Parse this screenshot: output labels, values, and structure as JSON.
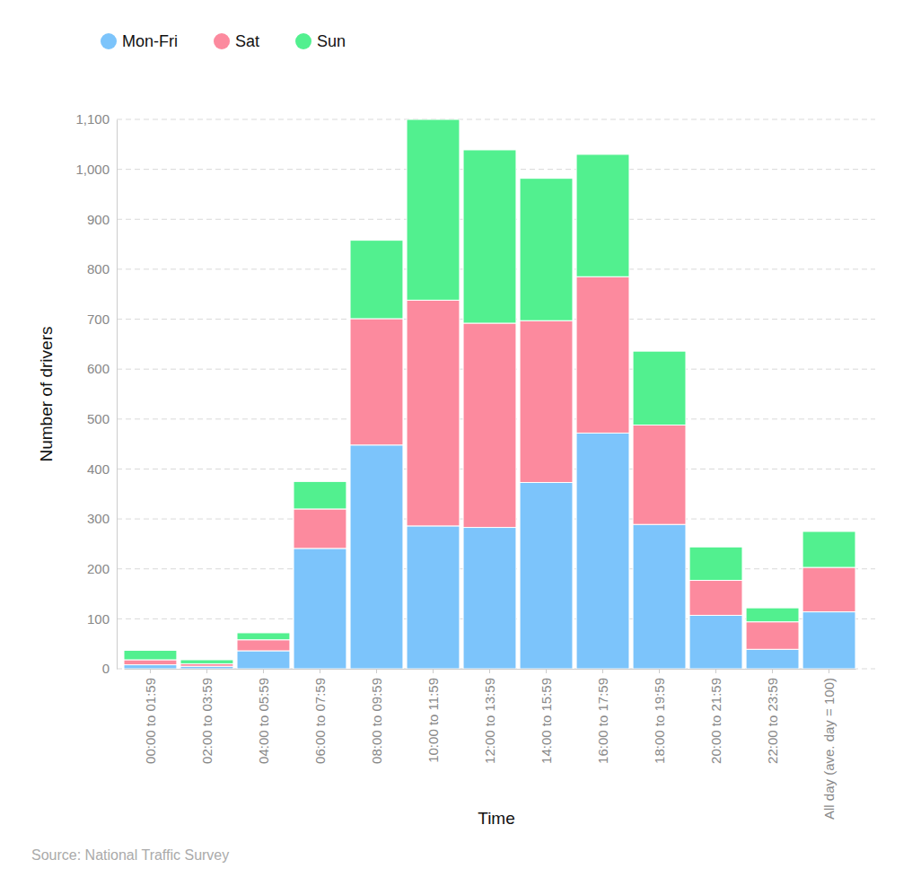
{
  "chart_data": {
    "type": "bar",
    "stacked": true,
    "x_label": "Time",
    "y_label": "Number of drivers",
    "annotations": [
      "Source: National Traffic Survey"
    ],
    "categories": [
      "00:00 to 01:59",
      "02:00 to 03:59",
      "04:00 to 05:59",
      "06:00 to 07:59",
      "08:00 to 09:59",
      "10:00 to 11:59",
      "12:00 to 13:59",
      "14:00 to 15:59",
      "16:00 to 17:59",
      "18:00 to 19:59",
      "20:00 to 21:59",
      "22:00 to 23:59",
      "All day (ave. day = 100)"
    ],
    "series": [
      {
        "name": "Mon-Fri",
        "color": "#7cc4fb",
        "values": [
          8,
          5,
          36,
          241,
          448,
          286,
          283,
          373,
          472,
          289,
          107,
          39,
          114
        ]
      },
      {
        "name": "Sat",
        "color": "#fc8a9e",
        "values": [
          10,
          5,
          22,
          79,
          253,
          452,
          409,
          324,
          313,
          199,
          70,
          55,
          89
        ]
      },
      {
        "name": "Sun",
        "color": "#52f08f",
        "values": [
          19,
          8,
          14,
          55,
          157,
          362,
          347,
          285,
          245,
          148,
          67,
          28,
          72
        ]
      }
    ],
    "ylim": [
      0,
      1100
    ],
    "yticks": [
      0,
      100,
      200,
      300,
      400,
      500,
      600,
      700,
      800,
      900,
      {
        "value": 1000,
        "label": "1,000"
      },
      {
        "value": 1100,
        "label": "1,100"
      }
    ],
    "grid": true,
    "legend": "top-left"
  }
}
